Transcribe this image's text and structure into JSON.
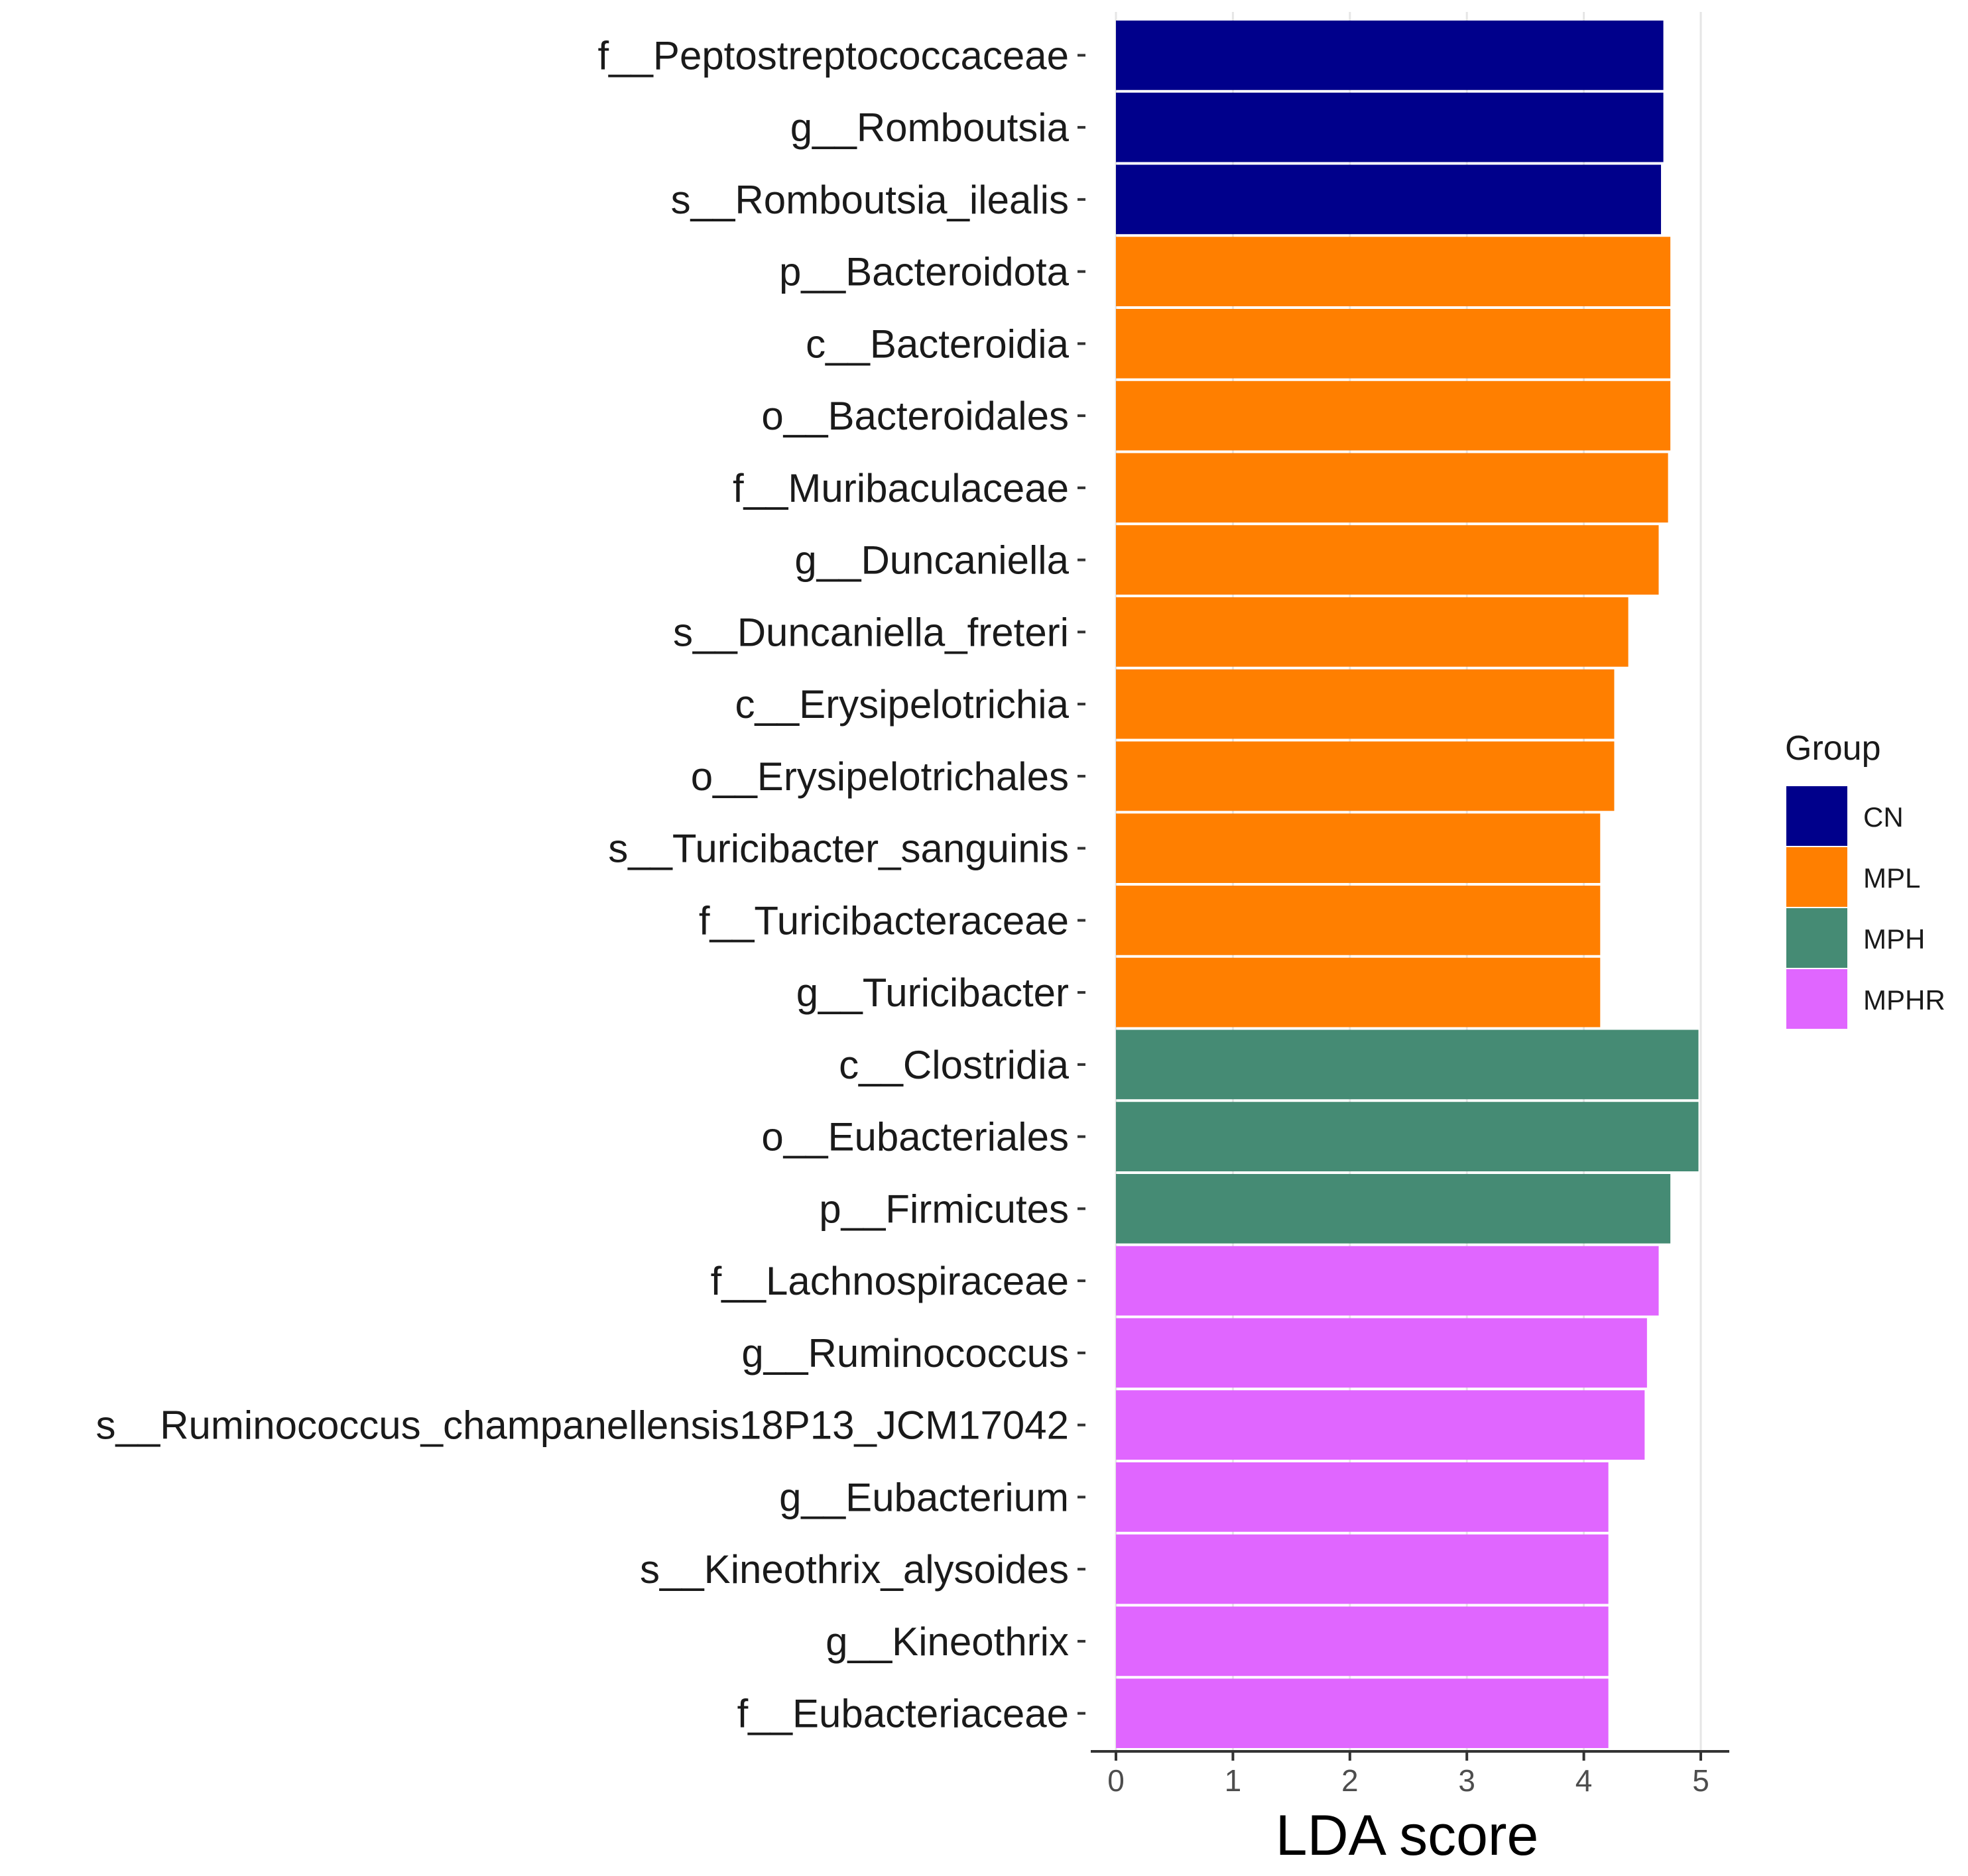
{
  "chart_data": {
    "type": "bar",
    "orientation": "horizontal",
    "title": "",
    "xlabel": "LDA score",
    "ylabel": "",
    "xlim": [
      0,
      5.2
    ],
    "xticks": [
      "0",
      "1",
      "2",
      "3",
      "4",
      "5"
    ],
    "grid": true,
    "legend_title": "Group",
    "legend_position": "right",
    "groups": [
      {
        "name": "CN",
        "color": "#00008B"
      },
      {
        "name": "MPL",
        "color": "#FF7F00"
      },
      {
        "name": "MPH",
        "color": "#458B74"
      },
      {
        "name": "MPHR",
        "color": "#E066FF"
      }
    ],
    "categories": [
      "f__Peptostreptococcaceae",
      "g__Romboutsia",
      "s__Romboutsia_ilealis",
      "p__Bacteroidota",
      "c__Bacteroidia",
      "o__Bacteroidales",
      "f__Muribaculaceae",
      "g__Duncaniella",
      "s__Duncaniella_freteri",
      "c__Erysipelotrichia",
      "o__Erysipelotrichales",
      "s__Turicibacter_sanguinis",
      "f__Turicibacteraceae",
      "g__Turicibacter",
      "c__Clostridia",
      "o__Eubacteriales",
      "p__Firmicutes",
      "f__Lachnospiraceae",
      "g__Ruminococcus",
      "s__Ruminococcus_champanellensis18P13_JCM17042",
      "g__Eubacterium",
      "s__Kineothrix_alysoides",
      "g__Kineothrix",
      "f__Eubacteriaceae"
    ],
    "values": [
      4.68,
      4.68,
      4.66,
      4.74,
      4.74,
      4.74,
      4.72,
      4.64,
      4.38,
      4.26,
      4.26,
      4.14,
      4.14,
      4.14,
      4.98,
      4.98,
      4.74,
      4.64,
      4.54,
      4.52,
      4.21,
      4.21,
      4.21,
      4.21
    ],
    "group_of": [
      "CN",
      "CN",
      "CN",
      "MPL",
      "MPL",
      "MPL",
      "MPL",
      "MPL",
      "MPL",
      "MPL",
      "MPL",
      "MPL",
      "MPL",
      "MPL",
      "MPH",
      "MPH",
      "MPH",
      "MPHR",
      "MPHR",
      "MPHR",
      "MPHR",
      "MPHR",
      "MPHR",
      "MPHR"
    ]
  }
}
